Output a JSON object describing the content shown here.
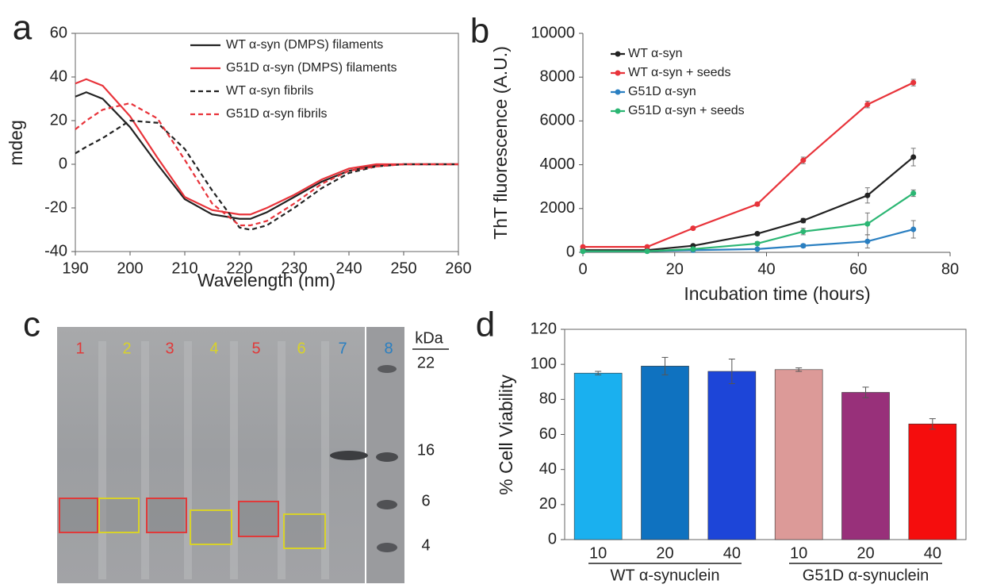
{
  "panel_letters": [
    "a",
    "b",
    "c",
    "d"
  ],
  "chart_data": [
    {
      "type": "line",
      "x_label": "Wavelength (nm)",
      "y_label": "mdeg",
      "x": [
        190,
        192,
        195,
        200,
        205,
        210,
        215,
        220,
        222,
        225,
        230,
        235,
        240,
        245,
        250,
        255,
        260
      ],
      "xlim": [
        190,
        260
      ],
      "xticks": [
        190,
        200,
        210,
        220,
        230,
        240,
        250,
        260
      ],
      "ylim": [
        -40,
        60
      ],
      "yticks": [
        -40,
        -20,
        0,
        20,
        40,
        60
      ],
      "legend": "upper right",
      "series": [
        {
          "name": "WT  α-syn (DMPS) filaments",
          "color": "#222222",
          "style": "solid",
          "values": [
            31,
            33,
            30,
            17,
            0,
            -16,
            -23,
            -25,
            -25,
            -22,
            -15,
            -8,
            -3,
            -0.5,
            0,
            0,
            0
          ]
        },
        {
          "name": "G51D  α-syn (DMPS) filaments",
          "color": "#e8333a",
          "style": "solid",
          "values": [
            37,
            39,
            36,
            22,
            3,
            -15,
            -21,
            -23,
            -23,
            -20,
            -14,
            -7,
            -2,
            0,
            0,
            0,
            0
          ]
        },
        {
          "name": "WT α-syn fibrils",
          "color": "#222222",
          "style": "dashed",
          "values": [
            5,
            8,
            12,
            20,
            19,
            7,
            -12,
            -29,
            -30,
            -28,
            -20,
            -11,
            -4,
            -1,
            0,
            0,
            0
          ]
        },
        {
          "name": "G51D α-syn fibrils",
          "color": "#e8333a",
          "style": "dashed",
          "values": [
            16,
            20,
            25,
            28,
            21,
            2,
            -18,
            -28,
            -28,
            -26,
            -18,
            -9,
            -3,
            -1,
            0,
            0,
            0
          ]
        }
      ]
    },
    {
      "type": "line",
      "x_label": "Incubation time (hours)",
      "y_label": "ThT fluorescence (A.U.)",
      "x": [
        0,
        14,
        24,
        38,
        48,
        62,
        72
      ],
      "xlim": [
        0,
        80
      ],
      "xticks": [
        0,
        20,
        40,
        60,
        80
      ],
      "ylim": [
        0,
        10000
      ],
      "yticks": [
        0,
        2000,
        4000,
        6000,
        8000,
        10000
      ],
      "legend": "upper left",
      "markers": true,
      "series": [
        {
          "name": "WT α-syn",
          "color": "#222222",
          "values": [
            100,
            100,
            300,
            850,
            1450,
            2600,
            4350
          ],
          "errors": [
            20,
            20,
            50,
            80,
            100,
            350,
            400
          ]
        },
        {
          "name": "WT α-syn  + seeds",
          "color": "#e8333a",
          "values": [
            250,
            250,
            1100,
            2200,
            4200,
            6750,
            7750
          ],
          "errors": [
            20,
            20,
            60,
            80,
            150,
            150,
            150
          ]
        },
        {
          "name": "G51D α-syn",
          "color": "#2a7fc1",
          "values": [
            50,
            50,
            100,
            150,
            300,
            500,
            1050
          ],
          "errors": [
            20,
            20,
            30,
            50,
            80,
            300,
            400
          ]
        },
        {
          "name": "G51D α-syn  + seeds",
          "color": "#2bb673",
          "values": [
            50,
            50,
            150,
            400,
            950,
            1300,
            2700
          ],
          "errors": [
            20,
            20,
            50,
            80,
            150,
            500,
            150
          ]
        }
      ]
    },
    {
      "type": "bar",
      "y_label": "% Cell Viability",
      "categories": [
        "10",
        "20",
        "40",
        "10",
        "20",
        "40"
      ],
      "groups": [
        "WT α-synuclein",
        "G51D α-synuclein"
      ],
      "values": [
        95,
        99,
        96,
        97,
        84,
        66
      ],
      "errors": [
        1,
        5,
        7,
        1,
        3,
        3
      ],
      "colors": [
        "#1ab0ef",
        "#0f72c0",
        "#1d45d8",
        "#dc9a98",
        "#98307a",
        "#f50d0d"
      ],
      "ylim": [
        0,
        120
      ],
      "yticks": [
        0,
        20,
        40,
        60,
        80,
        100,
        120
      ]
    }
  ],
  "gel": {
    "lanes": [
      {
        "label": "1",
        "color": "#e03a3a"
      },
      {
        "label": "2",
        "color": "#d8d22a"
      },
      {
        "label": "3",
        "color": "#e03a3a"
      },
      {
        "label": "4",
        "color": "#d8d22a"
      },
      {
        "label": "5",
        "color": "#e03a3a"
      },
      {
        "label": "6",
        "color": "#d8d22a"
      },
      {
        "label": "7",
        "color": "#2a7fc1"
      },
      {
        "label": "8",
        "color": "#2a7fc1"
      }
    ],
    "unit": "kDa",
    "markers": [
      "22",
      "16",
      "6",
      "4"
    ]
  }
}
